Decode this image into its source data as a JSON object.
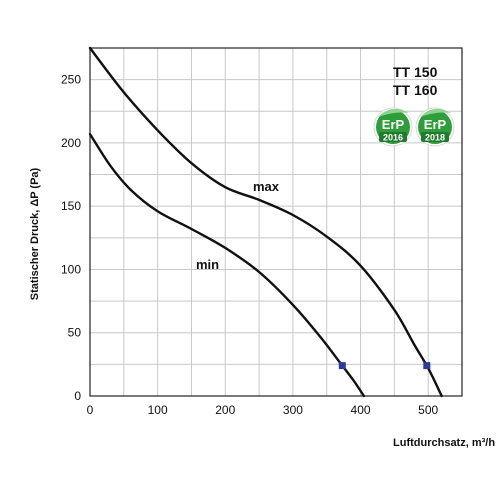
{
  "chart_data": {
    "type": "line",
    "xlabel": "Luftdurchsatz, m³/h",
    "ylabel": "Statischer Druck, ΔP (Pa)",
    "xlim": [
      0,
      550
    ],
    "ylim": [
      0,
      275
    ],
    "xticks": [
      0,
      100,
      200,
      300,
      400,
      500
    ],
    "yticks": [
      0,
      50,
      100,
      150,
      200,
      250
    ],
    "x_grid_step": 50,
    "y_grid_step": 25,
    "grid": true,
    "series": [
      {
        "name": "max",
        "points": [
          [
            0,
            275
          ],
          [
            50,
            240
          ],
          [
            100,
            210
          ],
          [
            150,
            184
          ],
          [
            200,
            165
          ],
          [
            250,
            155
          ],
          [
            300,
            143
          ],
          [
            350,
            126
          ],
          [
            400,
            103
          ],
          [
            450,
            68
          ],
          [
            480,
            40
          ],
          [
            500,
            22
          ],
          [
            520,
            0
          ]
        ]
      },
      {
        "name": "min",
        "points": [
          [
            0,
            207
          ],
          [
            30,
            182
          ],
          [
            60,
            163
          ],
          [
            100,
            146
          ],
          [
            150,
            132
          ],
          [
            200,
            117
          ],
          [
            250,
            98
          ],
          [
            300,
            72
          ],
          [
            340,
            47
          ],
          [
            373,
            24
          ],
          [
            390,
            12
          ],
          [
            405,
            0
          ]
        ]
      }
    ],
    "markers": [
      {
        "series": "min",
        "x": 373,
        "y": 24,
        "color": "#2b3a9e"
      },
      {
        "series": "max",
        "x": 498,
        "y": 24,
        "color": "#2b3a9e"
      }
    ]
  },
  "models": [
    "TT 150",
    "TT 160"
  ],
  "badges": [
    {
      "text_top": "ErP",
      "text_bottom": "2016",
      "color": "#2e9e3a"
    },
    {
      "text_top": "ErP",
      "text_bottom": "2018",
      "color": "#2e9e3a"
    }
  ]
}
